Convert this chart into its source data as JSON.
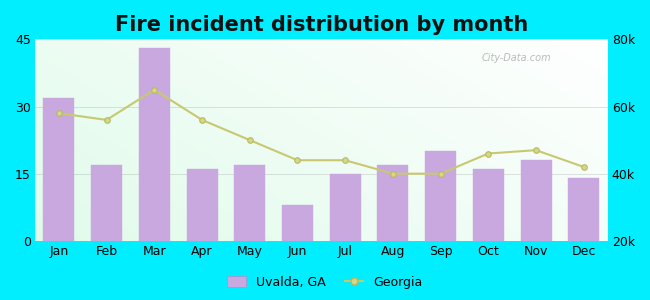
{
  "title": "Fire incident distribution by month",
  "months": [
    "Jan",
    "Feb",
    "Mar",
    "Apr",
    "May",
    "Jun",
    "Jul",
    "Aug",
    "Sep",
    "Oct",
    "Nov",
    "Dec"
  ],
  "bar_values": [
    32,
    17,
    43,
    16,
    17,
    8,
    15,
    17,
    20,
    16,
    18,
    14
  ],
  "line_values": [
    58000,
    56000,
    65000,
    56000,
    50000,
    44000,
    44000,
    40000,
    40000,
    46000,
    47000,
    42000
  ],
  "bar_color": "#c9a8e0",
  "bar_edge_color": "#c9a8e0",
  "line_color": "#c8c870",
  "line_marker": "o",
  "line_marker_face": "#d4d888",
  "line_marker_edge": "#b8b860",
  "outer_background": "#00eeff",
  "ylim_left": [
    0,
    45
  ],
  "ylim_right": [
    20000,
    80000
  ],
  "yticks_left": [
    0,
    15,
    30,
    45
  ],
  "yticks_right": [
    20000,
    40000,
    60000,
    80000
  ],
  "ytick_labels_right": [
    "20k",
    "40k",
    "60k",
    "80k"
  ],
  "legend_uvalda": "Uvalda, GA",
  "legend_georgia": "Georgia",
  "watermark": "City-Data.com",
  "title_fontsize": 15,
  "axis_fontsize": 9
}
